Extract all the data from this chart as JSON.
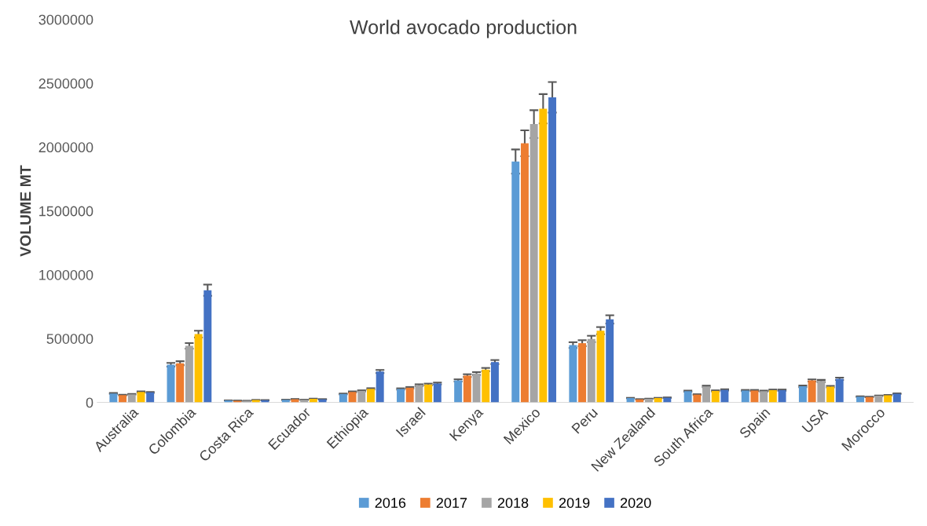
{
  "chart_data": {
    "type": "bar",
    "title": "World avocado production",
    "ylabel": "VOLUME MT",
    "categories": [
      "Australia",
      "Colombia",
      "Costa Rica",
      "Ecuador",
      "Ethiopia",
      "Israel",
      "Kenya",
      "Mexico",
      "Peru",
      "New Zealand",
      "South Africa",
      "Spain",
      "USA",
      "Morocco"
    ],
    "series": [
      {
        "name": "2016",
        "color": "#5b9bd5",
        "values": [
          70000,
          295000,
          15000,
          20000,
          66000,
          105000,
          172000,
          1887000,
          449000,
          34000,
          88000,
          93000,
          126000,
          45000
        ],
        "errors": [
          3500,
          14750,
          750,
          1000,
          3300,
          5250,
          8600,
          94350,
          22450,
          1700,
          4400,
          4650,
          6300,
          2250
        ]
      },
      {
        "name": "2017",
        "color": "#ed7d31",
        "values": [
          57000,
          307000,
          13000,
          25000,
          82000,
          115000,
          210000,
          2030000,
          464000,
          24000,
          61000,
          93000,
          172000,
          42000
        ],
        "errors": [
          2850,
          15350,
          650,
          1250,
          4100,
          5750,
          10500,
          101500,
          23200,
          1200,
          3050,
          4650,
          8600,
          2100
        ]
      },
      {
        "name": "2018",
        "color": "#a5a5a5",
        "values": [
          63000,
          443000,
          12000,
          20000,
          90000,
          135000,
          226000,
          2180000,
          497000,
          28000,
          125000,
          88000,
          168000,
          52000
        ],
        "errors": [
          3150,
          22150,
          600,
          1000,
          4500,
          6750,
          11300,
          109000,
          24850,
          1400,
          6250,
          4400,
          8400,
          2600
        ]
      },
      {
        "name": "2019",
        "color": "#ffc000",
        "values": [
          82000,
          535000,
          18000,
          28000,
          106000,
          140000,
          257000,
          2300000,
          562000,
          34000,
          90000,
          96000,
          123000,
          55000
        ],
        "errors": [
          4100,
          26750,
          900,
          1400,
          5300,
          7000,
          12850,
          115000,
          28100,
          1700,
          4500,
          4800,
          6150,
          2750
        ]
      },
      {
        "name": "2020",
        "color": "#4472c4",
        "values": [
          78000,
          879000,
          17000,
          24000,
          242000,
          148000,
          316000,
          2390000,
          650000,
          37000,
          98000,
          96000,
          185000,
          68000
        ],
        "errors": [
          3900,
          43950,
          850,
          1200,
          12100,
          7400,
          15800,
          119500,
          32500,
          1850,
          4900,
          4800,
          9250,
          3400
        ]
      }
    ],
    "ylim": [
      0,
      3000000
    ],
    "yticks": [
      0,
      500000,
      1000000,
      1500000,
      2000000,
      2500000,
      3000000
    ],
    "grid": false,
    "legend": "bottom"
  }
}
